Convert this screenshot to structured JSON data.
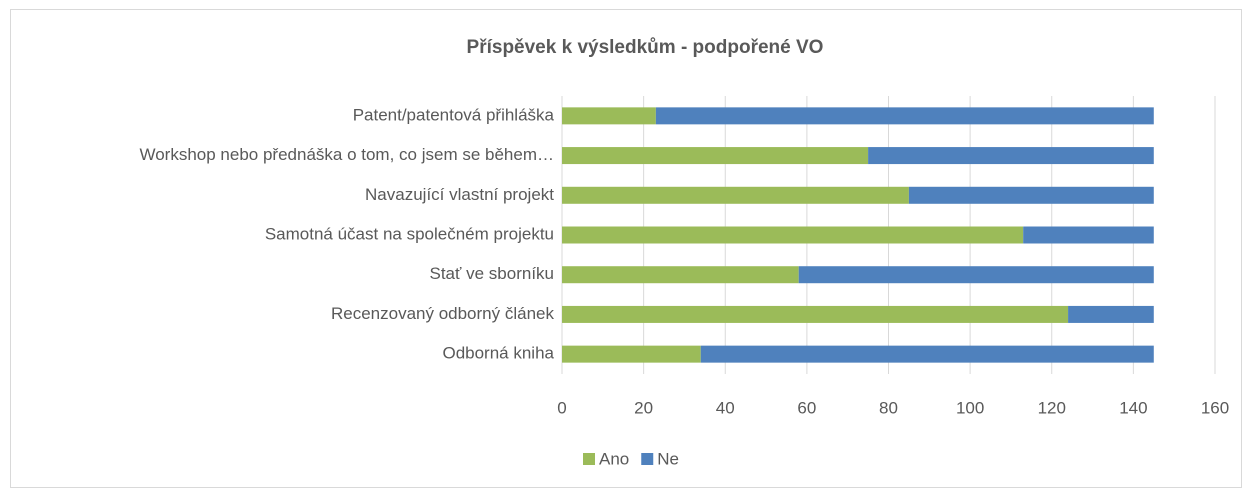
{
  "chart_data": {
    "type": "stacked_bar_horizontal",
    "title": "Příspěvek k výsledkům - podpořené VO",
    "categories": [
      "Patent/patentová přihláška",
      "Workshop nebo přednáška o tom, co jsem se během…",
      "Navazující vlastní projekt",
      "Samotná účast na společném projektu",
      "Stať ve sborníku",
      "Recenzovaný odborný článek",
      "Odborná kniha"
    ],
    "series": [
      {
        "name": "Ano",
        "color": "#9bbb59",
        "values": [
          23,
          75,
          85,
          113,
          58,
          124,
          34
        ]
      },
      {
        "name": "Ne",
        "color": "#4f81bd",
        "values": [
          122,
          70,
          60,
          32,
          87,
          21,
          111
        ]
      }
    ],
    "xlim": [
      0,
      160
    ],
    "xticks": [
      0,
      20,
      40,
      60,
      80,
      100,
      120,
      140,
      160
    ],
    "grid": true,
    "legend": "bottom"
  }
}
